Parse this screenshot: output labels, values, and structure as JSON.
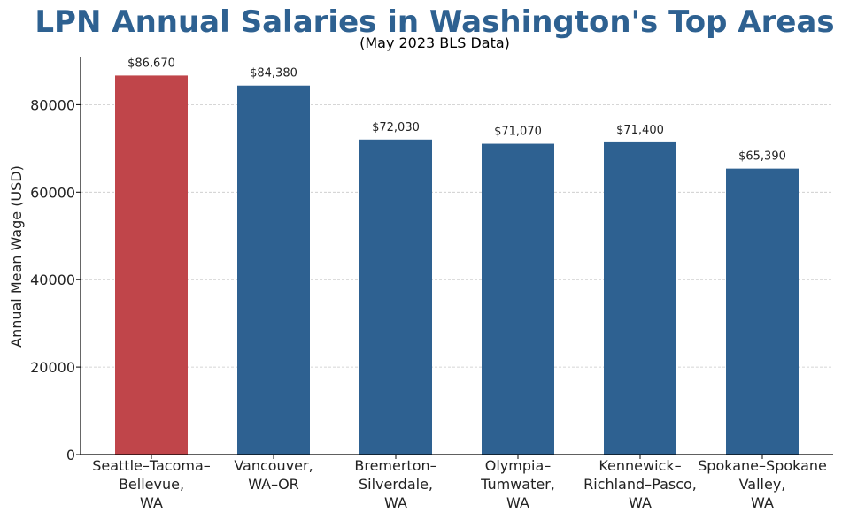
{
  "colors": {
    "title": "#2e6191",
    "bar_default": "#2e6191",
    "bar_highlight": "#c0454a",
    "grid": "#c8c8c8",
    "axis": "#000000",
    "text": "#222222"
  },
  "chart_data": {
    "type": "bar",
    "title": "LPN Annual Salaries in Washington's Top Areas",
    "subtitle": "(May 2023 BLS Data)",
    "xlabel": "",
    "ylabel": "Annual Mean Wage (USD)",
    "ylim": [
      0,
      91000
    ],
    "yticks": [
      0,
      20000,
      40000,
      60000,
      80000
    ],
    "ytick_labels": [
      "0",
      "20000",
      "40000",
      "60000",
      "80000"
    ],
    "grid": "horizontal dashed",
    "categories": [
      [
        "Seattle–Tacoma–",
        "Bellevue,",
        "WA"
      ],
      [
        "Vancouver,",
        "WA–OR"
      ],
      [
        "Bremerton–",
        "Silverdale,",
        "WA"
      ],
      [
        "Olympia–",
        "Tumwater,",
        "WA"
      ],
      [
        "Kennewick–",
        "Richland–Pasco,",
        "WA"
      ],
      [
        "Spokane–Spokane",
        "Valley,",
        "WA"
      ]
    ],
    "values": [
      86670,
      84380,
      72030,
      71070,
      71400,
      65390
    ],
    "value_labels": [
      "$86,670",
      "$84,380",
      "$72,030",
      "$71,070",
      "$71,400",
      "$65,390"
    ],
    "highlight_index": 0
  }
}
